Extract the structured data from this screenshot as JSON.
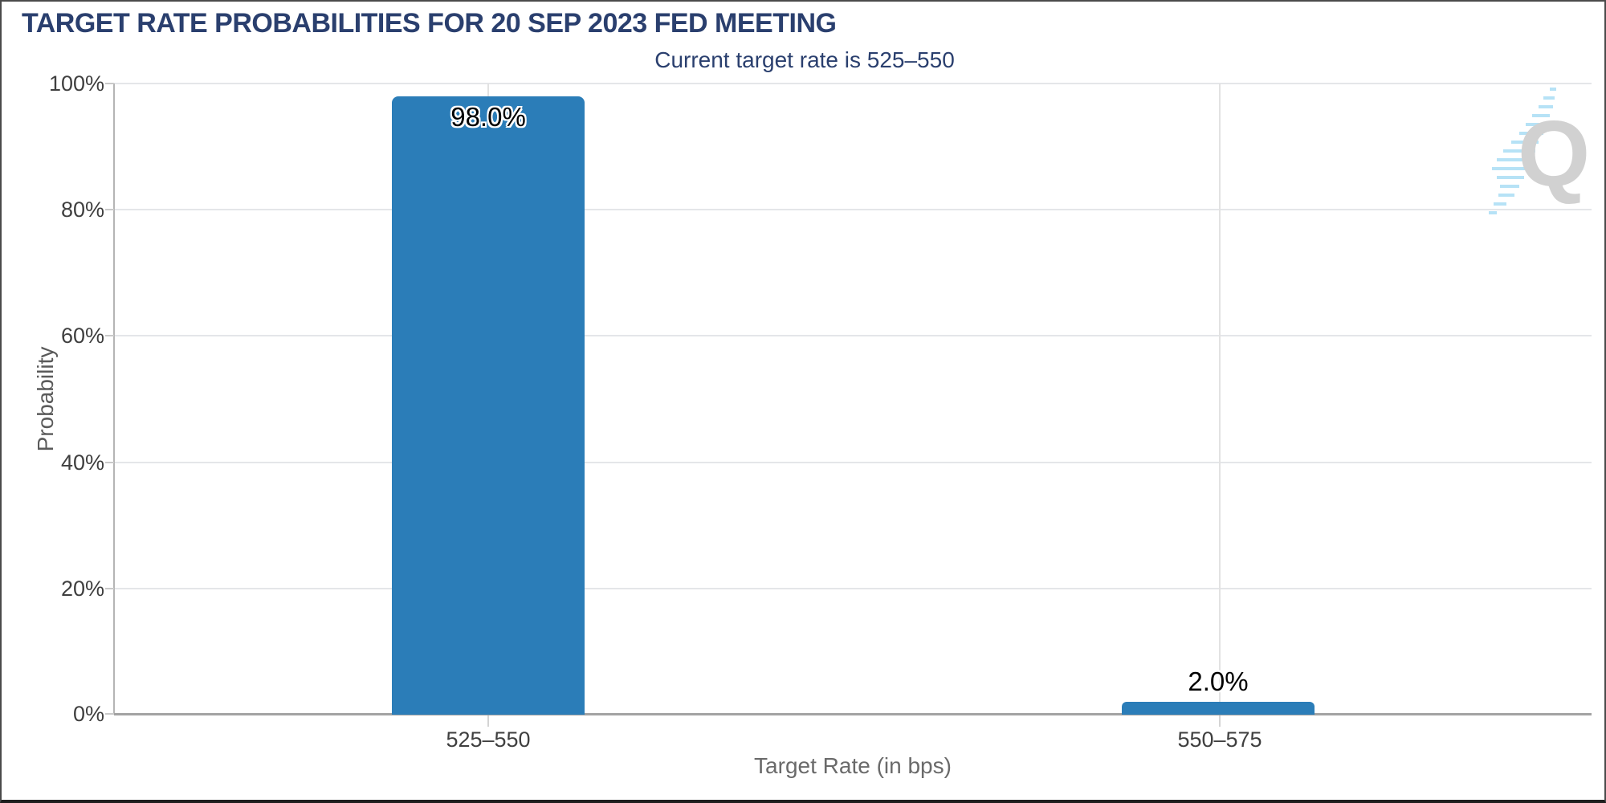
{
  "header": {
    "title": "TARGET RATE PROBABILITIES FOR 20 SEP 2023 FED MEETING",
    "subtitle": "Current target rate is 525–550"
  },
  "chart_data": {
    "type": "bar",
    "title": "TARGET RATE PROBABILITIES FOR 20 SEP 2023 FED MEETING",
    "subtitle": "Current target rate is 525–550",
    "categories": [
      "525–550",
      "550–575"
    ],
    "values": [
      98.0,
      2.0
    ],
    "value_labels": [
      "98.0%",
      "2.0%"
    ],
    "xlabel": "Target Rate (in bps)",
    "ylabel": "Probability",
    "ylim": [
      0,
      100
    ],
    "yticks": [
      "0%",
      "20%",
      "40%",
      "60%",
      "80%",
      "100%"
    ],
    "grid": true,
    "legend": "none",
    "bar_color": "#2b7db8"
  },
  "colors": {
    "title_navy": "#2a3f6e",
    "bar_blue": "#2b7db8",
    "gridline": "#e2e2e2",
    "axis_line": "#a3a3a3",
    "tick_text": "#3f3f3f",
    "axis_title_text": "#6a6a6a",
    "logo_gray": "#c9c9c9",
    "logo_blue": "#aadef5"
  },
  "logo": {
    "letter": "Q"
  }
}
